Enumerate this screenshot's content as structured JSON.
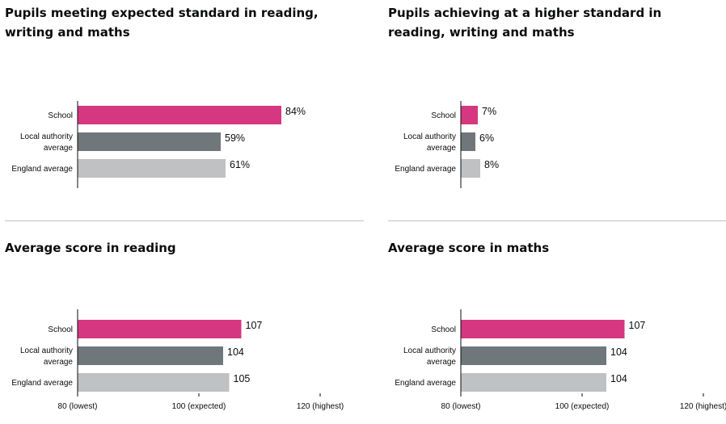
{
  "chart_data": [
    {
      "type": "bar",
      "title": "Pupils meeting expected standard in reading, writing and maths",
      "categories": [
        "School",
        "Local authority average",
        "England average"
      ],
      "category_lines": [
        [
          "School"
        ],
        [
          "Local authority",
          "average"
        ],
        [
          "England average"
        ]
      ],
      "values": [
        84,
        59,
        61
      ],
      "value_labels": [
        "84%",
        "59%",
        "61%"
      ],
      "colors": [
        "#d53880",
        "#6f777b",
        "#bfc1c3"
      ],
      "xlim": [
        0,
        100
      ],
      "ticks": []
    },
    {
      "type": "bar",
      "title": "Pupils achieving at a higher standard in reading, writing and maths",
      "categories": [
        "School",
        "Local authority average",
        "England average"
      ],
      "category_lines": [
        [
          "School"
        ],
        [
          "Local authority",
          "average"
        ],
        [
          "England average"
        ]
      ],
      "values": [
        7,
        6,
        8
      ],
      "value_labels": [
        "7%",
        "6%",
        "8%"
      ],
      "colors": [
        "#d53880",
        "#6f777b",
        "#bfc1c3"
      ],
      "xlim": [
        0,
        100
      ],
      "ticks": []
    },
    {
      "type": "bar",
      "title": "Average score in reading",
      "categories": [
        "School",
        "Local authority average",
        "England average"
      ],
      "category_lines": [
        [
          "School"
        ],
        [
          "Local authority",
          "average"
        ],
        [
          "England average"
        ]
      ],
      "values": [
        107,
        104,
        105
      ],
      "value_labels": [
        "107",
        "104",
        "105"
      ],
      "colors": [
        "#d53880",
        "#6f777b",
        "#bfc1c3"
      ],
      "xlim": [
        80,
        120
      ],
      "ticks": [
        {
          "value": 80,
          "label": "80 (lowest)"
        },
        {
          "value": 100,
          "label": "100 (expected)"
        },
        {
          "value": 120,
          "label": "120 (highest)"
        }
      ]
    },
    {
      "type": "bar",
      "title": "Average score in maths",
      "categories": [
        "School",
        "Local authority average",
        "England average"
      ],
      "category_lines": [
        [
          "School"
        ],
        [
          "Local authority",
          "average"
        ],
        [
          "England average"
        ]
      ],
      "values": [
        107,
        104,
        104
      ],
      "value_labels": [
        "107",
        "104",
        "104"
      ],
      "colors": [
        "#d53880",
        "#6f777b",
        "#bfc1c3"
      ],
      "xlim": [
        80,
        120
      ],
      "ticks": [
        {
          "value": 80,
          "label": "80 (lowest)"
        },
        {
          "value": 100,
          "label": "100 (expected)"
        },
        {
          "value": 120,
          "label": "120 (highest)"
        }
      ]
    }
  ]
}
